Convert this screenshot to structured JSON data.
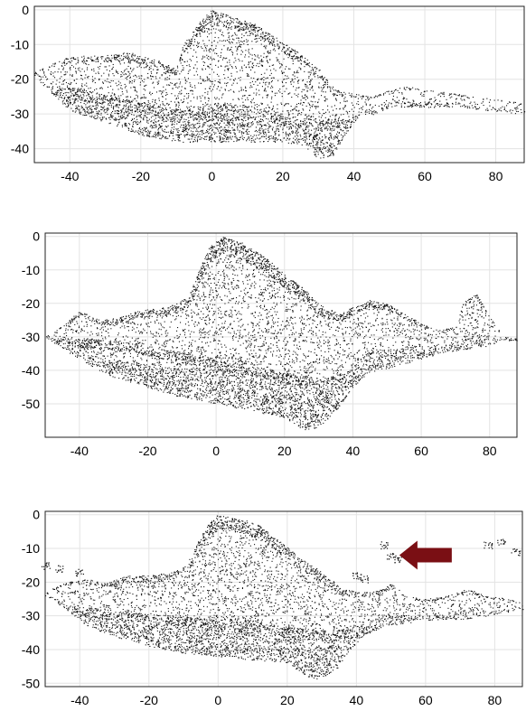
{
  "chart_data": [
    {
      "type": "scatter",
      "title": "",
      "xlabel": "",
      "ylabel": "",
      "xlim": [
        -50,
        88
      ],
      "ylim": [
        -44,
        1
      ],
      "grid": true,
      "xticks": [
        -40,
        -20,
        0,
        20,
        40,
        60,
        80
      ],
      "yticks": [
        0,
        -10,
        -20,
        -30,
        -40
      ],
      "point_color": "#111111",
      "top_profile": [
        [
          -50,
          -18
        ],
        [
          -42,
          -14
        ],
        [
          -35,
          -13
        ],
        [
          -28,
          -13
        ],
        [
          -24,
          -12
        ],
        [
          -20,
          -13
        ],
        [
          -14,
          -15
        ],
        [
          -10,
          -17
        ],
        [
          -8,
          -10
        ],
        [
          -4,
          -4
        ],
        [
          0,
          0
        ],
        [
          6,
          -2
        ],
        [
          12,
          -4
        ],
        [
          18,
          -8
        ],
        [
          24,
          -12
        ],
        [
          30,
          -17
        ],
        [
          35,
          -23
        ],
        [
          40,
          -24
        ],
        [
          45,
          -25
        ],
        [
          50,
          -23
        ],
        [
          55,
          -22
        ],
        [
          60,
          -23
        ],
        [
          68,
          -24
        ],
        [
          75,
          -25
        ],
        [
          82,
          -26
        ],
        [
          88,
          -27
        ]
      ],
      "bottom_profile": [
        [
          -50,
          -19
        ],
        [
          -45,
          -24
        ],
        [
          -40,
          -29
        ],
        [
          -34,
          -31
        ],
        [
          -28,
          -33
        ],
        [
          -20,
          -36
        ],
        [
          -10,
          -38
        ],
        [
          0,
          -38
        ],
        [
          10,
          -38
        ],
        [
          20,
          -38
        ],
        [
          26,
          -39
        ],
        [
          30,
          -43
        ],
        [
          34,
          -42
        ],
        [
          38,
          -35
        ],
        [
          42,
          -30
        ],
        [
          46,
          -30
        ],
        [
          50,
          -28
        ],
        [
          55,
          -28
        ],
        [
          62,
          -28
        ],
        [
          70,
          -28
        ],
        [
          78,
          -29
        ],
        [
          88,
          -30
        ]
      ],
      "dense_band": [
        [
          -38,
          -24
        ],
        [
          -30,
          -26
        ],
        [
          -20,
          -28
        ],
        [
          -10,
          -30
        ],
        [
          0,
          -31
        ],
        [
          10,
          -32
        ],
        [
          20,
          -32
        ],
        [
          30,
          -33
        ],
        [
          36,
          -33
        ]
      ]
    },
    {
      "type": "scatter",
      "title": "",
      "xlabel": "",
      "ylabel": "",
      "xlim": [
        -50,
        88
      ],
      "ylim": [
        -60,
        1
      ],
      "grid": true,
      "xticks": [
        -40,
        -20,
        0,
        20,
        40,
        60,
        80
      ],
      "yticks": [
        0,
        -10,
        -20,
        -30,
        -40,
        -50
      ],
      "point_color": "#111111",
      "top_profile": [
        [
          -50,
          -30
        ],
        [
          -44,
          -26
        ],
        [
          -40,
          -22
        ],
        [
          -34,
          -25
        ],
        [
          -28,
          -24
        ],
        [
          -22,
          -22
        ],
        [
          -14,
          -21
        ],
        [
          -8,
          -18
        ],
        [
          -5,
          -10
        ],
        [
          -2,
          -3
        ],
        [
          2,
          0
        ],
        [
          8,
          -2
        ],
        [
          14,
          -6
        ],
        [
          20,
          -11
        ],
        [
          26,
          -16
        ],
        [
          30,
          -20
        ],
        [
          36,
          -23
        ],
        [
          40,
          -21
        ],
        [
          45,
          -19
        ],
        [
          50,
          -20
        ],
        [
          55,
          -23
        ],
        [
          60,
          -26
        ],
        [
          65,
          -28
        ],
        [
          70,
          -27
        ],
        [
          72,
          -20
        ],
        [
          76,
          -17
        ],
        [
          80,
          -24
        ],
        [
          84,
          -30
        ]
      ],
      "bottom_profile": [
        [
          -50,
          -30
        ],
        [
          -44,
          -34
        ],
        [
          -38,
          -38
        ],
        [
          -30,
          -42
        ],
        [
          -20,
          -45
        ],
        [
          -10,
          -48
        ],
        [
          0,
          -50
        ],
        [
          10,
          -52
        ],
        [
          20,
          -54
        ],
        [
          26,
          -58
        ],
        [
          30,
          -57
        ],
        [
          35,
          -52
        ],
        [
          40,
          -45
        ],
        [
          44,
          -41
        ],
        [
          48,
          -40
        ],
        [
          55,
          -38
        ],
        [
          62,
          -36
        ],
        [
          70,
          -34
        ],
        [
          78,
          -33
        ],
        [
          84,
          -31
        ]
      ],
      "dense_band": [
        [
          -36,
          -32
        ],
        [
          -26,
          -33
        ],
        [
          -16,
          -35
        ],
        [
          -6,
          -37
        ],
        [
          4,
          -39
        ],
        [
          14,
          -41
        ],
        [
          24,
          -43
        ],
        [
          32,
          -44
        ],
        [
          38,
          -42
        ]
      ]
    },
    {
      "type": "scatter",
      "title": "",
      "xlabel": "",
      "ylabel": "",
      "xlim": [
        -50,
        88
      ],
      "ylim": [
        -51,
        1
      ],
      "grid": true,
      "xticks": [
        -40,
        -20,
        0,
        20,
        40,
        60,
        80
      ],
      "yticks": [
        0,
        -10,
        -20,
        -30,
        -40,
        -50
      ],
      "point_color": "#111111",
      "top_profile": [
        [
          -50,
          -23
        ],
        [
          -44,
          -20
        ],
        [
          -38,
          -19
        ],
        [
          -32,
          -20
        ],
        [
          -26,
          -18
        ],
        [
          -20,
          -18
        ],
        [
          -14,
          -17
        ],
        [
          -9,
          -15
        ],
        [
          -6,
          -8
        ],
        [
          -3,
          -3
        ],
        [
          0,
          0
        ],
        [
          6,
          -1
        ],
        [
          12,
          -3
        ],
        [
          18,
          -8
        ],
        [
          24,
          -13
        ],
        [
          30,
          -17
        ],
        [
          36,
          -22
        ],
        [
          42,
          -23
        ],
        [
          48,
          -22
        ],
        [
          50,
          -20
        ],
        [
          54,
          -24
        ],
        [
          60,
          -25
        ],
        [
          66,
          -24
        ],
        [
          72,
          -22
        ],
        [
          78,
          -24
        ],
        [
          84,
          -25
        ],
        [
          88,
          -26
        ]
      ],
      "bottom_profile": [
        [
          -50,
          -24
        ],
        [
          -44,
          -28
        ],
        [
          -38,
          -33
        ],
        [
          -30,
          -36
        ],
        [
          -20,
          -39
        ],
        [
          -10,
          -41
        ],
        [
          0,
          -42
        ],
        [
          10,
          -43
        ],
        [
          20,
          -44
        ],
        [
          26,
          -48
        ],
        [
          30,
          -49
        ],
        [
          34,
          -46
        ],
        [
          38,
          -40
        ],
        [
          42,
          -36
        ],
        [
          48,
          -33
        ],
        [
          55,
          -32
        ],
        [
          62,
          -31
        ],
        [
          70,
          -31
        ],
        [
          78,
          -30
        ],
        [
          88,
          -28
        ]
      ],
      "dense_band": [
        [
          -38,
          -29
        ],
        [
          -28,
          -30
        ],
        [
          -18,
          -31
        ],
        [
          -8,
          -32
        ],
        [
          2,
          -33
        ],
        [
          12,
          -34
        ],
        [
          22,
          -35
        ],
        [
          32,
          -36
        ],
        [
          38,
          -35
        ]
      ],
      "outliers": [
        [
          -50,
          -15
        ],
        [
          -46,
          -16
        ],
        [
          -40,
          -17
        ],
        [
          40,
          -18
        ],
        [
          42,
          -19
        ],
        [
          48,
          -9
        ],
        [
          50,
          -12
        ],
        [
          52,
          -13
        ],
        [
          78,
          -9
        ],
        [
          82,
          -8
        ],
        [
          86,
          -11
        ]
      ],
      "annotation": {
        "shape": "arrow-left",
        "color": "#7a0f14",
        "x": 60,
        "y": -12
      }
    }
  ]
}
